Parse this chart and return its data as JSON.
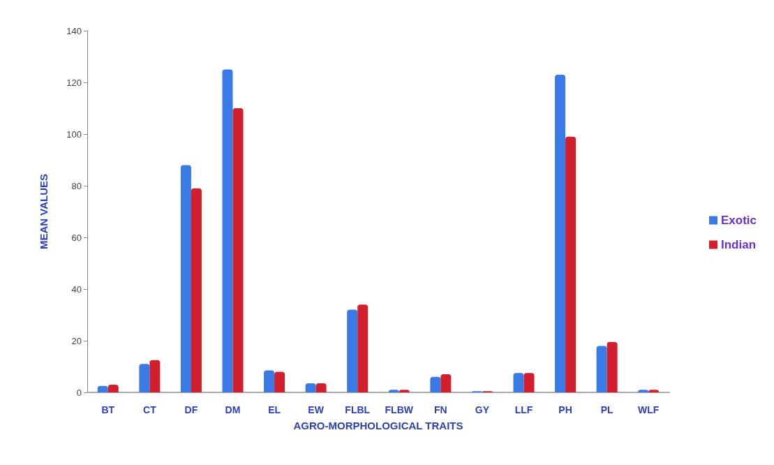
{
  "chart_data": {
    "type": "bar",
    "xlabel": "AGRO-MORPHOLOGICAL TRAITS",
    "ylabel": "MEAN VALUES",
    "categories": [
      "BT",
      "CT",
      "DF",
      "DM",
      "EL",
      "EW",
      "FLBL",
      "FLBW",
      "FN",
      "GY",
      "LLF",
      "PH",
      "PL",
      "WLF"
    ],
    "series": [
      {
        "name": "Exotic",
        "color": "#3a7ae6",
        "values": [
          2.5,
          11,
          88,
          125,
          8.5,
          3.5,
          32,
          1,
          6,
          0.5,
          7.5,
          123,
          18,
          1
        ]
      },
      {
        "name": "Indian",
        "color": "#d21f2e",
        "values": [
          3,
          12.5,
          79,
          110,
          8,
          3.5,
          34,
          1,
          7,
          0.5,
          7.5,
          99,
          19.5,
          1
        ]
      }
    ],
    "ylim": [
      0,
      140
    ],
    "yticks": [
      0,
      20,
      40,
      60,
      80,
      100,
      120,
      140
    ],
    "grid": false,
    "legend": "right"
  }
}
